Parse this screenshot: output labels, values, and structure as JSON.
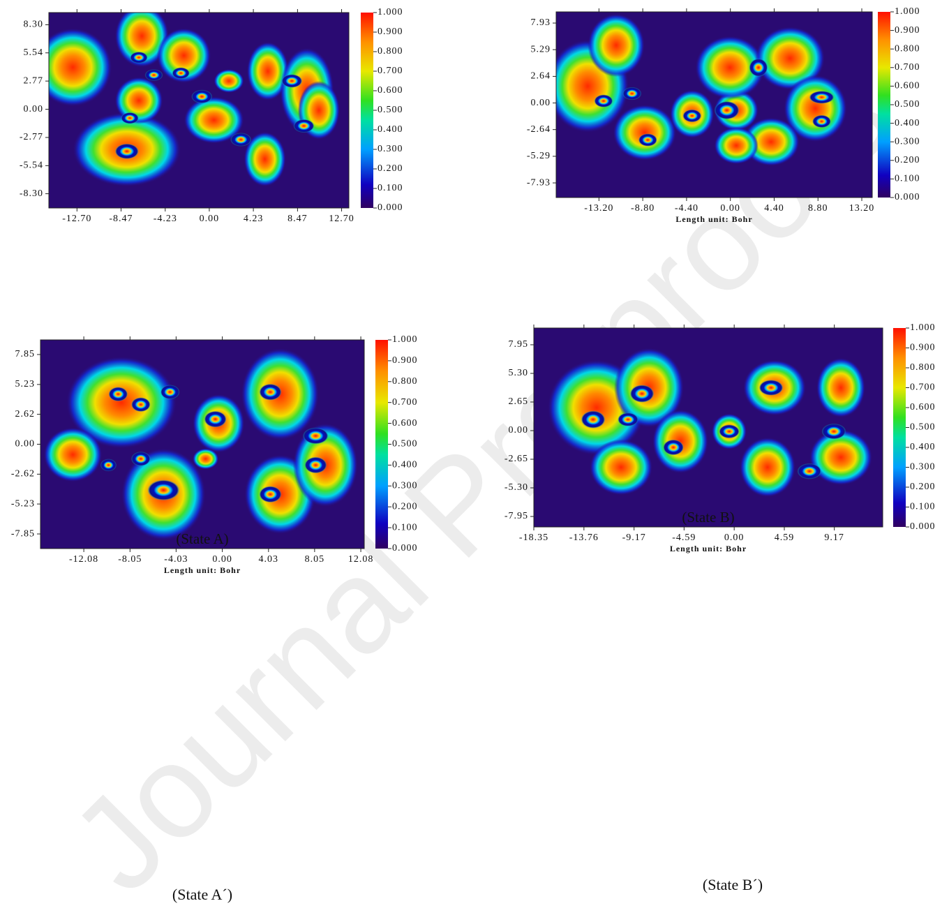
{
  "watermark": "Journal Pre-proofs",
  "captions": [
    "(State A´)",
    "(State B´)"
  ],
  "chart_data": [
    {
      "type": "heatmap",
      "xlim": [
        -15.4,
        13.4
      ],
      "ylim": [
        -9.7,
        9.5
      ],
      "xticks": [
        {
          "value": -12.7,
          "label": "-12.70"
        },
        {
          "value": -8.47,
          "label": "-8.47"
        },
        {
          "value": -4.23,
          "label": "-4.23"
        },
        {
          "value": 0,
          "label": "0.00"
        },
        {
          "value": 4.23,
          "label": "4.23"
        },
        {
          "value": 8.47,
          "label": "8.47"
        },
        {
          "value": 12.7,
          "label": "12.70"
        }
      ],
      "yticks": [
        {
          "value": 8.3,
          "label": "8.30"
        },
        {
          "value": 5.54,
          "label": "5.54"
        },
        {
          "value": 2.77,
          "label": "2.77"
        },
        {
          "value": 0,
          "label": "0.00"
        },
        {
          "value": -2.77,
          "label": "-2.77"
        },
        {
          "value": -5.54,
          "label": "-5.54"
        },
        {
          "value": -8.3,
          "label": "-8.30"
        }
      ],
      "clim": [
        0,
        1
      ],
      "cticks": [
        {
          "value": 0,
          "label": "0.000"
        },
        {
          "value": 0.1,
          "label": "0.100"
        },
        {
          "value": 0.2,
          "label": "0.200"
        },
        {
          "value": 0.3,
          "label": "0.300"
        },
        {
          "value": 0.4,
          "label": "0.400"
        },
        {
          "value": 0.5,
          "label": "0.500"
        },
        {
          "value": 0.6,
          "label": "0.600"
        },
        {
          "value": 0.7,
          "label": "0.700"
        },
        {
          "value": 0.8,
          "label": "0.800"
        },
        {
          "value": 0.9,
          "label": "0.900"
        },
        {
          "value": 1,
          "label": "1.000"
        }
      ]
    },
    {
      "type": "heatmap",
      "xlabel": "Length unit: Bohr",
      "xlim": [
        -17.5,
        14.25
      ],
      "ylim": [
        -9.38,
        9.04
      ],
      "xticks": [
        {
          "value": -13.2,
          "label": "-13.20"
        },
        {
          "value": -8.8,
          "label": "-8.80"
        },
        {
          "value": -4.4,
          "label": "-4.40"
        },
        {
          "value": 0,
          "label": "0.00"
        },
        {
          "value": 4.4,
          "label": "4.40"
        },
        {
          "value": 8.8,
          "label": "8.80"
        },
        {
          "value": 13.2,
          "label": "13.20"
        }
      ],
      "yticks": [
        {
          "value": 7.93,
          "label": "7.93"
        },
        {
          "value": 5.29,
          "label": "5.29"
        },
        {
          "value": 2.64,
          "label": "2.64"
        },
        {
          "value": 0,
          "label": "0.00"
        },
        {
          "value": -2.64,
          "label": "-2.64"
        },
        {
          "value": -5.29,
          "label": "-5.29"
        },
        {
          "value": -7.93,
          "label": "-7.93"
        }
      ],
      "clim": [
        0,
        1
      ],
      "cticks": [
        {
          "value": 0,
          "label": "0.000"
        },
        {
          "value": 0.1,
          "label": "0.100"
        },
        {
          "value": 0.2,
          "label": "0.200"
        },
        {
          "value": 0.3,
          "label": "0.300"
        },
        {
          "value": 0.4,
          "label": "0.400"
        },
        {
          "value": 0.5,
          "label": "0.500"
        },
        {
          "value": 0.6,
          "label": "0.600"
        },
        {
          "value": 0.7,
          "label": "0.700"
        },
        {
          "value": 0.8,
          "label": "0.800"
        },
        {
          "value": 0.9,
          "label": "0.900"
        },
        {
          "value": 1,
          "label": "1.000"
        }
      ]
    },
    {
      "type": "heatmap",
      "xlabel": "Length unit: Bohr",
      "annotation": "(State A)",
      "xlim": [
        -15.86,
        12.38
      ],
      "ylim": [
        -9.13,
        9.13
      ],
      "xticks": [
        {
          "value": -12.08,
          "label": "-12.08"
        },
        {
          "value": -8.05,
          "label": "-8.05"
        },
        {
          "value": -4.03,
          "label": "-4.03"
        },
        {
          "value": 0,
          "label": "0.00"
        },
        {
          "value": 4.03,
          "label": "4.03"
        },
        {
          "value": 8.05,
          "label": "8.05"
        },
        {
          "value": 12.08,
          "label": "12.08"
        }
      ],
      "yticks": [
        {
          "value": 7.85,
          "label": "7.85"
        },
        {
          "value": 5.23,
          "label": "5.23"
        },
        {
          "value": 2.62,
          "label": "2.62"
        },
        {
          "value": 0,
          "label": "0.00"
        },
        {
          "value": -2.62,
          "label": "-2.62"
        },
        {
          "value": -5.23,
          "label": "-5.23"
        },
        {
          "value": -7.85,
          "label": "-7.85"
        }
      ],
      "clim": [
        0,
        1
      ],
      "cticks": [
        {
          "value": 0,
          "label": "0.000"
        },
        {
          "value": 0.1,
          "label": "0.100"
        },
        {
          "value": 0.2,
          "label": "0.200"
        },
        {
          "value": 0.3,
          "label": "0.300"
        },
        {
          "value": 0.4,
          "label": "0.400"
        },
        {
          "value": 0.5,
          "label": "0.500"
        },
        {
          "value": 0.6,
          "label": "0.600"
        },
        {
          "value": 0.7,
          "label": "0.700"
        },
        {
          "value": 0.8,
          "label": "0.800"
        },
        {
          "value": 0.9,
          "label": "0.900"
        },
        {
          "value": 1,
          "label": "1.000"
        }
      ]
    },
    {
      "type": "heatmap",
      "xlabel": "Length unit: Bohr",
      "annotation": "(State B)",
      "xlim": [
        -18.35,
        13.6
      ],
      "ylim": [
        -8.92,
        9.5
      ],
      "xticks": [
        {
          "value": -18.35,
          "label": "-18.35"
        },
        {
          "value": -13.76,
          "label": "-13.76"
        },
        {
          "value": -9.17,
          "label": "-9.17"
        },
        {
          "value": -4.59,
          "label": "-4.59"
        },
        {
          "value": 0,
          "label": "0.00"
        },
        {
          "value": 4.59,
          "label": "4.59"
        },
        {
          "value": 9.17,
          "label": "9.17"
        }
      ],
      "yticks": [
        {
          "value": 7.95,
          "label": "7.95"
        },
        {
          "value": 5.3,
          "label": "5.30"
        },
        {
          "value": 2.65,
          "label": "2.65"
        },
        {
          "value": 0,
          "label": "0.00"
        },
        {
          "value": -2.65,
          "label": "-2.65"
        },
        {
          "value": -5.3,
          "label": "-5.30"
        },
        {
          "value": -7.95,
          "label": "-7.95"
        }
      ],
      "clim": [
        0,
        1
      ],
      "cticks": [
        {
          "value": 0,
          "label": "0.000"
        },
        {
          "value": 0.1,
          "label": "0.100"
        },
        {
          "value": 0.2,
          "label": "0.200"
        },
        {
          "value": 0.3,
          "label": "0.300"
        },
        {
          "value": 0.4,
          "label": "0.400"
        },
        {
          "value": 0.5,
          "label": "0.500"
        },
        {
          "value": 0.6,
          "label": "0.600"
        },
        {
          "value": 0.7,
          "label": "0.700"
        },
        {
          "value": 0.8,
          "label": "0.800"
        },
        {
          "value": 0.9,
          "label": "0.900"
        },
        {
          "value": 1,
          "label": "1.000"
        }
      ]
    }
  ]
}
